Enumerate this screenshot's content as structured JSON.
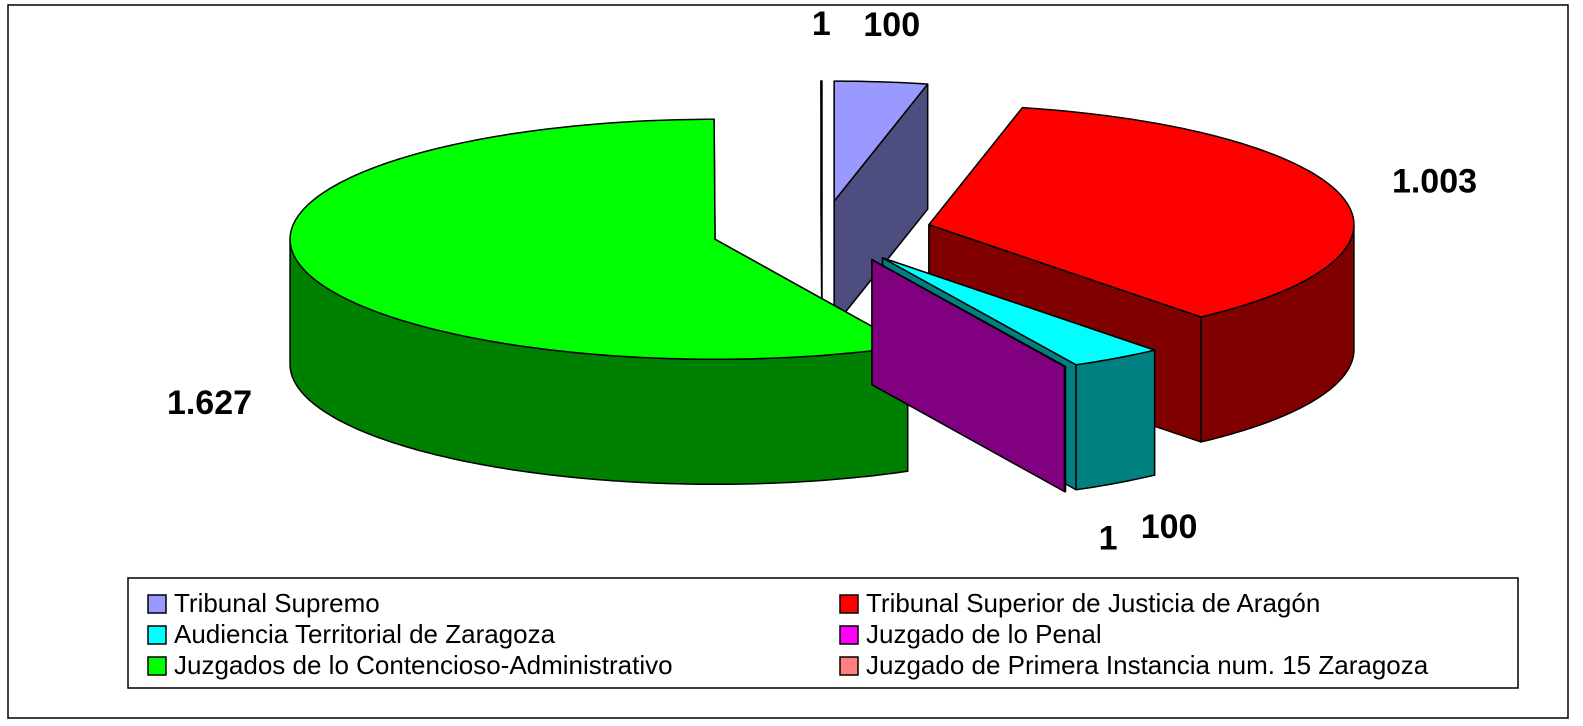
{
  "chart_data": {
    "type": "pie3d",
    "categories": [
      "Tribunal Supremo",
      "Tribunal Superior de Justicia de Aragón",
      "Audiencia Territorial de Zaragoza",
      "Juzgado de lo Penal",
      "Juzgados de lo Contencioso-Administrativo",
      "Juzgado de Primera Instancia num. 15 Zaragoza"
    ],
    "values": [
      100,
      1003,
      100,
      1,
      1627,
      1
    ],
    "value_labels": [
      "100",
      "1.003",
      "100",
      "1",
      "1.627",
      "1"
    ],
    "colors": [
      "#9999ff",
      "#ff0000",
      "#00ffff",
      "#ff00ff",
      "#00ff00",
      "#ff8080"
    ],
    "legend": "bottom"
  }
}
